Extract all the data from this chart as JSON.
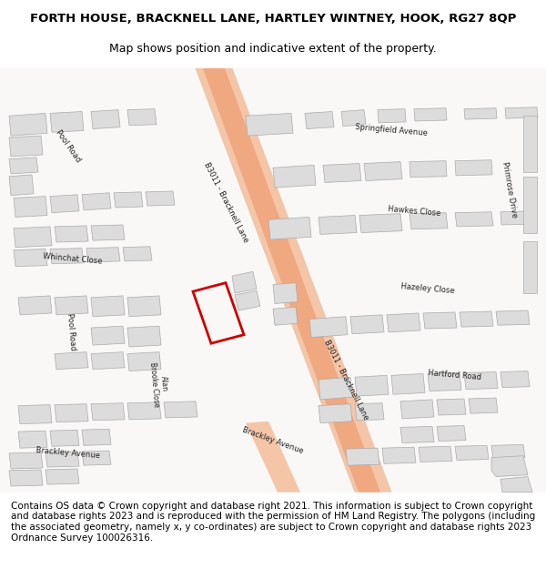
{
  "title_line1": "FORTH HOUSE, BRACKNELL LANE, HARTLEY WINTNEY, HOOK, RG27 8QP",
  "title_line2": "Map shows position and indicative extent of the property.",
  "footer": "Contains OS data © Crown copyright and database right 2021. This information is subject to Crown copyright and database rights 2023 and is reproduced with the permission of HM Land Registry. The polygons (including the associated geometry, namely x, y co-ordinates) are subject to Crown copyright and database rights 2023 Ordnance Survey 100026316.",
  "bg_color": "#f5f3f0",
  "map_bg": "#f9f8f6",
  "road_color": "#f0a080",
  "road_border": "#e8896a",
  "building_color": "#dcdcdc",
  "building_border": "#aaaaaa",
  "property_color": "none",
  "property_border": "#cc0000",
  "street_label_color": "#333333",
  "title_fontsize": 9.5,
  "subtitle_fontsize": 9,
  "footer_fontsize": 7.5
}
